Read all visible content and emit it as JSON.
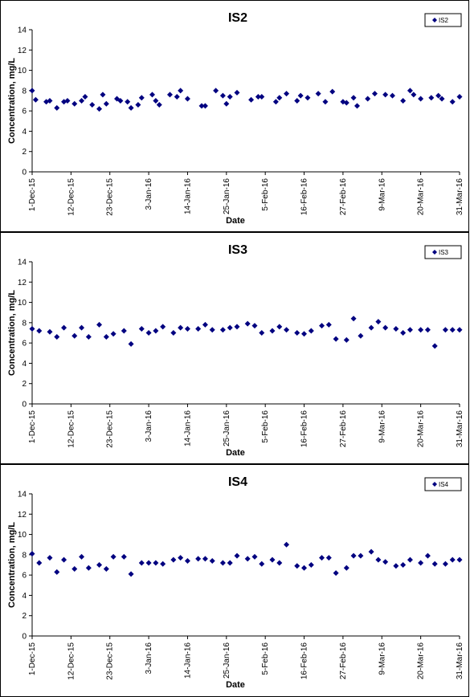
{
  "chart_data": [
    {
      "type": "scatter",
      "title": "IS2",
      "xlabel": "Date",
      "ylabel": "Concentration, mg/L",
      "ylim": [
        0,
        14
      ],
      "yticks": [
        0,
        2,
        4,
        6,
        8,
        10,
        12,
        14
      ],
      "xlim": [
        "2015-12-01",
        "2016-03-31"
      ],
      "xtick_labels": [
        "1-Dec-15",
        "12-Dec-15",
        "23-Dec-15",
        "3-Jan-16",
        "14-Jan-16",
        "25-Jan-16",
        "5-Feb-16",
        "16-Feb-16",
        "27-Feb-16",
        "9-Mar-16",
        "20-Mar-16",
        "31-Mar-16"
      ],
      "legend_position": "top-right",
      "color": "#000080",
      "series": [
        {
          "name": "IS2",
          "x": [
            "2015-12-01",
            "2015-12-02",
            "2015-12-05",
            "2015-12-06",
            "2015-12-08",
            "2015-12-10",
            "2015-12-11",
            "2015-12-13",
            "2015-12-15",
            "2015-12-16",
            "2015-12-18",
            "2015-12-20",
            "2015-12-21",
            "2015-12-22",
            "2015-12-25",
            "2015-12-26",
            "2015-12-28",
            "2015-12-29",
            "2015-12-31",
            "2016-01-01",
            "2016-01-04",
            "2016-01-05",
            "2016-01-06",
            "2016-01-09",
            "2016-01-11",
            "2016-01-12",
            "2016-01-14",
            "2016-01-18",
            "2016-01-19",
            "2016-01-22",
            "2016-01-24",
            "2016-01-25",
            "2016-01-26",
            "2016-01-28",
            "2016-02-01",
            "2016-02-03",
            "2016-02-04",
            "2016-02-08",
            "2016-02-09",
            "2016-02-11",
            "2016-02-14",
            "2016-02-15",
            "2016-02-17",
            "2016-02-20",
            "2016-02-22",
            "2016-02-24",
            "2016-02-27",
            "2016-02-28",
            "2016-03-01",
            "2016-03-02",
            "2016-03-05",
            "2016-03-07",
            "2016-03-10",
            "2016-03-12",
            "2016-03-15",
            "2016-03-17",
            "2016-03-18",
            "2016-03-20",
            "2016-03-23",
            "2016-03-25",
            "2016-03-26",
            "2016-03-29",
            "2016-03-31"
          ],
          "y": [
            8.0,
            7.1,
            6.9,
            7.0,
            6.3,
            6.9,
            7.0,
            6.7,
            7.0,
            7.4,
            6.6,
            6.2,
            7.6,
            6.7,
            7.2,
            7.0,
            6.9,
            6.3,
            6.6,
            7.3,
            7.6,
            7.0,
            6.6,
            7.6,
            7.4,
            8.0,
            7.2,
            6.5,
            6.5,
            8.0,
            7.5,
            6.7,
            7.4,
            7.8,
            7.1,
            7.4,
            7.4,
            6.9,
            7.3,
            7.7,
            7.0,
            7.5,
            7.3,
            7.7,
            6.9,
            7.9,
            6.9,
            6.8,
            7.3,
            6.5,
            7.2,
            7.7,
            7.6,
            7.5,
            7.0,
            8.0,
            7.6,
            7.2,
            7.3,
            7.5,
            7.2,
            6.9,
            7.4
          ]
        }
      ]
    },
    {
      "type": "scatter",
      "title": "IS3",
      "xlabel": "Date",
      "ylabel": "Concentration, mg/L",
      "ylim": [
        0,
        14
      ],
      "yticks": [
        0,
        2,
        4,
        6,
        8,
        10,
        12,
        14
      ],
      "xlim": [
        "2015-12-01",
        "2016-03-31"
      ],
      "xtick_labels": [
        "1-Dec-15",
        "12-Dec-15",
        "23-Dec-15",
        "3-Jan-16",
        "14-Jan-16",
        "25-Jan-16",
        "5-Feb-16",
        "16-Feb-16",
        "27-Feb-16",
        "9-Mar-16",
        "20-Mar-16",
        "31-Mar-16"
      ],
      "legend_position": "top-right",
      "color": "#000080",
      "series": [
        {
          "name": "IS3",
          "x": [
            "2015-12-01",
            "2015-12-03",
            "2015-12-06",
            "2015-12-08",
            "2015-12-10",
            "2015-12-13",
            "2015-12-15",
            "2015-12-17",
            "2015-12-20",
            "2015-12-22",
            "2015-12-24",
            "2015-12-27",
            "2015-12-29",
            "2016-01-01",
            "2016-01-03",
            "2016-01-05",
            "2016-01-07",
            "2016-01-10",
            "2016-01-12",
            "2016-01-14",
            "2016-01-17",
            "2016-01-19",
            "2016-01-21",
            "2016-01-24",
            "2016-01-26",
            "2016-01-28",
            "2016-01-31",
            "2016-02-02",
            "2016-02-04",
            "2016-02-07",
            "2016-02-09",
            "2016-02-11",
            "2016-02-14",
            "2016-02-16",
            "2016-02-18",
            "2016-02-21",
            "2016-02-23",
            "2016-02-25",
            "2016-02-28",
            "2016-03-01",
            "2016-03-03",
            "2016-03-06",
            "2016-03-08",
            "2016-03-10",
            "2016-03-13",
            "2016-03-15",
            "2016-03-17",
            "2016-03-20",
            "2016-03-22",
            "2016-03-24",
            "2016-03-27",
            "2016-03-29",
            "2016-03-31"
          ],
          "y": [
            7.4,
            7.2,
            7.1,
            6.6,
            7.5,
            6.7,
            7.5,
            6.6,
            7.8,
            6.6,
            6.9,
            7.2,
            5.9,
            7.4,
            7.0,
            7.2,
            7.6,
            7.0,
            7.5,
            7.4,
            7.4,
            7.8,
            7.3,
            7.3,
            7.5,
            7.6,
            7.9,
            7.7,
            7.0,
            7.2,
            7.6,
            7.3,
            7.0,
            6.9,
            7.2,
            7.7,
            7.8,
            6.4,
            6.3,
            8.4,
            6.7,
            7.5,
            8.1,
            7.5,
            7.4,
            7.0,
            7.3,
            7.3,
            7.3,
            5.7,
            7.3,
            7.3,
            7.3
          ]
        }
      ]
    },
    {
      "type": "scatter",
      "title": "IS4",
      "xlabel": "Date",
      "ylabel": "Concentration, mg/L",
      "ylim": [
        0,
        14
      ],
      "yticks": [
        0,
        2,
        4,
        6,
        8,
        10,
        12,
        14
      ],
      "xlim": [
        "2015-12-01",
        "2016-03-31"
      ],
      "xtick_labels": [
        "1-Dec-15",
        "12-Dec-15",
        "23-Dec-15",
        "3-Jan-16",
        "14-Jan-16",
        "25-Jan-16",
        "5-Feb-16",
        "16-Feb-16",
        "27-Feb-16",
        "9-Mar-16",
        "20-Mar-16",
        "31-Mar-16"
      ],
      "legend_position": "top-right",
      "color": "#000080",
      "series": [
        {
          "name": "IS4",
          "x": [
            "2015-12-01",
            "2015-12-03",
            "2015-12-06",
            "2015-12-08",
            "2015-12-10",
            "2015-12-13",
            "2015-12-15",
            "2015-12-17",
            "2015-12-20",
            "2015-12-22",
            "2015-12-24",
            "2015-12-27",
            "2015-12-29",
            "2016-01-01",
            "2016-01-03",
            "2016-01-05",
            "2016-01-07",
            "2016-01-10",
            "2016-01-12",
            "2016-01-14",
            "2016-01-17",
            "2016-01-19",
            "2016-01-21",
            "2016-01-24",
            "2016-01-26",
            "2016-01-28",
            "2016-01-31",
            "2016-02-02",
            "2016-02-04",
            "2016-02-07",
            "2016-02-09",
            "2016-02-11",
            "2016-02-14",
            "2016-02-16",
            "2016-02-18",
            "2016-02-21",
            "2016-02-23",
            "2016-02-25",
            "2016-02-28",
            "2016-03-01",
            "2016-03-03",
            "2016-03-06",
            "2016-03-08",
            "2016-03-10",
            "2016-03-13",
            "2016-03-15",
            "2016-03-17",
            "2016-03-20",
            "2016-03-22",
            "2016-03-24",
            "2016-03-27",
            "2016-03-29",
            "2016-03-31"
          ],
          "y": [
            8.1,
            7.2,
            7.7,
            6.3,
            7.5,
            6.6,
            7.8,
            6.7,
            7.0,
            6.6,
            7.8,
            7.8,
            6.1,
            7.2,
            7.2,
            7.2,
            7.1,
            7.5,
            7.7,
            7.4,
            7.6,
            7.6,
            7.4,
            7.2,
            7.2,
            7.9,
            7.6,
            7.8,
            7.1,
            7.5,
            7.2,
            9.0,
            6.9,
            6.7,
            7.0,
            7.7,
            7.7,
            6.2,
            6.7,
            7.9,
            7.9,
            8.3,
            7.5,
            7.3,
            6.9,
            7.0,
            7.5,
            7.2,
            7.9,
            7.1,
            7.1,
            7.5,
            7.5
          ]
        }
      ]
    }
  ]
}
